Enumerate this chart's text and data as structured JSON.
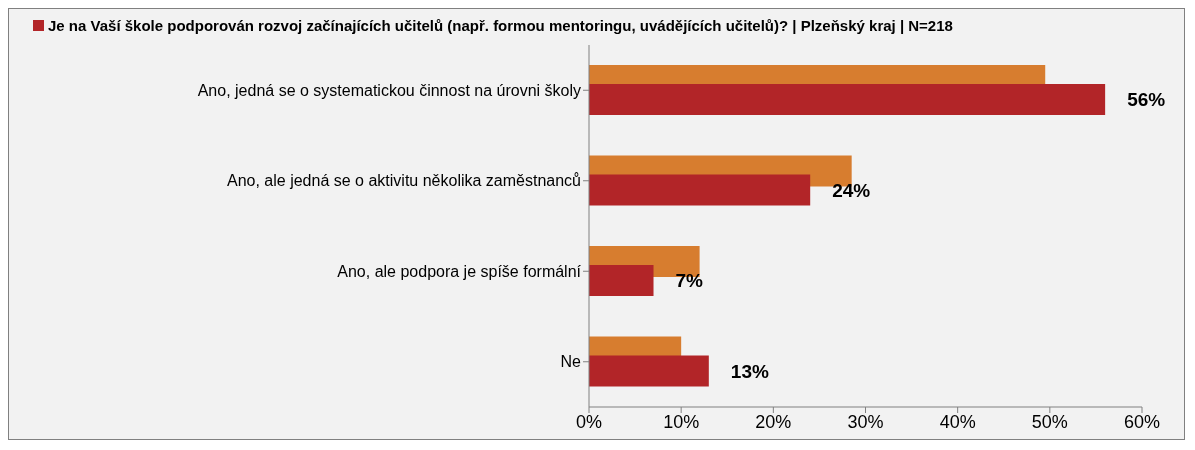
{
  "chart_data": {
    "type": "bar",
    "orientation": "horizontal",
    "categories": [
      "Ano, jedná se o systematickou činnost na úrovni školy",
      "Ano, ale jedná se o aktivitu několika zaměstnanců",
      "Ano, ale podpora je spíše formální",
      "Ne"
    ],
    "series": [
      {
        "color": "#d77d2f",
        "values": [
          49.5,
          28.5,
          12,
          10
        ]
      },
      {
        "name": "Je na Vaší škole podporován rozvoj začínajících učitelů (např. formou mentoringu, uvádějících učitelů)?  | Plzeňský kraj | N=218",
        "color": "#b22528",
        "values": [
          56,
          24,
          7,
          13
        ],
        "value_labels": [
          "56%",
          "24%",
          "7%",
          "13%"
        ]
      }
    ],
    "xlim": [
      0,
      60
    ],
    "xticks": [
      {
        "value": 0,
        "label": "0%"
      },
      {
        "value": 10,
        "label": "10%"
      },
      {
        "value": 20,
        "label": "20%"
      },
      {
        "value": 30,
        "label": "30%"
      },
      {
        "value": 40,
        "label": "40%"
      },
      {
        "value": 50,
        "label": "50%"
      },
      {
        "value": 60,
        "label": "60%"
      }
    ],
    "grid": false,
    "legend": "top"
  }
}
